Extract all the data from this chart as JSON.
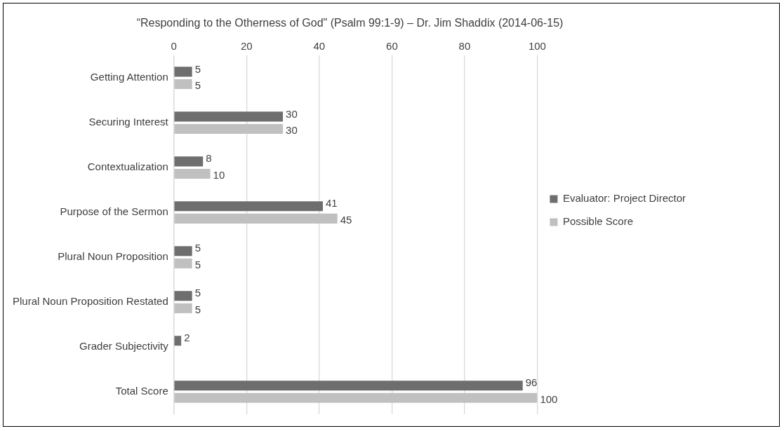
{
  "chart_data": {
    "type": "bar",
    "orientation": "horizontal",
    "title": "“Responding to the Otherness of God\" (Psalm 99:1-9) – Dr. Jim Shaddix (2014-06-15)",
    "categories": [
      "Getting Attention",
      "Securing Interest",
      "Contextualization",
      "Purpose of the Sermon",
      "Plural Noun Proposition",
      "Plural Noun Proposition Restated",
      "Grader Subjectivity",
      "Total Score"
    ],
    "series": [
      {
        "name": "Evaluator: Project Director",
        "color": "#6e6e6e",
        "values": [
          5,
          30,
          8,
          41,
          5,
          5,
          2,
          96
        ]
      },
      {
        "name": "Possible Score",
        "color": "#c0c0c0",
        "values": [
          5,
          30,
          10,
          45,
          5,
          5,
          null,
          100
        ]
      }
    ],
    "xlim": [
      0,
      100
    ],
    "xticks": [
      0,
      20,
      40,
      60,
      80,
      100
    ],
    "grid": "x",
    "legend": "right",
    "data_labels": true
  }
}
